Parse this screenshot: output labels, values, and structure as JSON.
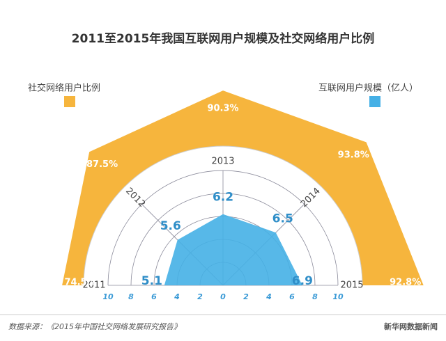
{
  "chart_data": {
    "type": "polar-area",
    "title": "2011至2015年我国互联网用户规模及社交网络用户比例",
    "categories": [
      "2011",
      "2012",
      "2013",
      "2014",
      "2015"
    ],
    "series": [
      {
        "name": "社交网络用户比例",
        "color": "#f6b53d",
        "values": [
          74.5,
          87.5,
          90.3,
          93.8,
          92.8
        ],
        "value_labels": [
          "74.5%",
          "87.5%",
          "90.3%",
          "93.8%",
          "92.8%"
        ],
        "axis": "y2"
      },
      {
        "name": "互联网用户规模（亿人）",
        "color": "#45b0e6",
        "values": [
          5.1,
          5.6,
          6.2,
          6.5,
          6.9
        ]
      }
    ],
    "ylim": [
      0,
      10
    ],
    "yticks": [
      0,
      2,
      4,
      6,
      8,
      10
    ],
    "y2lim": [
      0,
      100
    ]
  },
  "footer": {
    "source": "数据来源：《2015年中国社交网络发展研究报告》",
    "brand": "新华网数据新闻"
  }
}
